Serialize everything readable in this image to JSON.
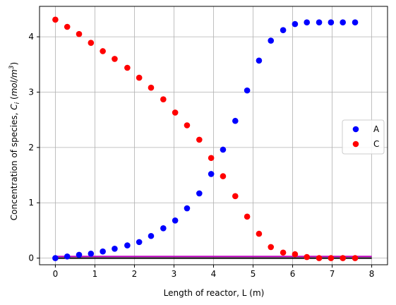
{
  "chart_data": {
    "type": "scatter",
    "title": "",
    "xlabel": "Length of reactor, L (m)",
    "ylabel_prefix": "Concentration of species, ",
    "ylabel_math": "C",
    "ylabel_sub": "i",
    "ylabel_units_open": " (",
    "ylabel_units_main": "mol/m",
    "ylabel_units_sup": "3",
    "ylabel_units_close": ")",
    "xlim": [
      -0.4,
      8.4
    ],
    "ylim": [
      -0.12,
      4.55
    ],
    "xticks": [
      0,
      1,
      2,
      3,
      4,
      5,
      6,
      7,
      8
    ],
    "yticks": [
      0,
      1,
      2,
      3,
      4
    ],
    "grid": true,
    "legend": {
      "position": "center-right"
    },
    "x": [
      0,
      0.3,
      0.6,
      0.9,
      1.2,
      1.5,
      1.82,
      2.12,
      2.42,
      2.73,
      3.03,
      3.33,
      3.64,
      3.94,
      4.24,
      4.55,
      4.85,
      5.15,
      5.45,
      5.76,
      6.06,
      6.36,
      6.67,
      6.97,
      7.27,
      7.58
    ],
    "series": [
      {
        "name": "A",
        "color": "#0000ff",
        "values": [
          0,
          0.03,
          0.06,
          0.08,
          0.12,
          0.17,
          0.23,
          0.29,
          0.4,
          0.54,
          0.68,
          0.9,
          1.17,
          1.52,
          1.96,
          2.48,
          3.03,
          3.57,
          3.93,
          4.12,
          4.23,
          4.26,
          4.26,
          4.26,
          4.26,
          4.26
        ]
      },
      {
        "name": "C",
        "color": "#ff0000",
        "values": [
          4.31,
          4.18,
          4.05,
          3.89,
          3.74,
          3.6,
          3.44,
          3.26,
          3.08,
          2.87,
          2.63,
          2.4,
          2.14,
          1.81,
          1.48,
          1.12,
          0.75,
          0.44,
          0.2,
          0.1,
          0.07,
          0.02,
          0.0,
          0.0,
          0.0,
          0.0
        ]
      }
    ],
    "reference_lines": [
      {
        "y": 0.0,
        "x_range": [
          0,
          8
        ],
        "color": "#000000"
      },
      {
        "y": 0.03,
        "x_range": [
          0,
          8
        ],
        "color": "#bf00bf"
      }
    ]
  }
}
